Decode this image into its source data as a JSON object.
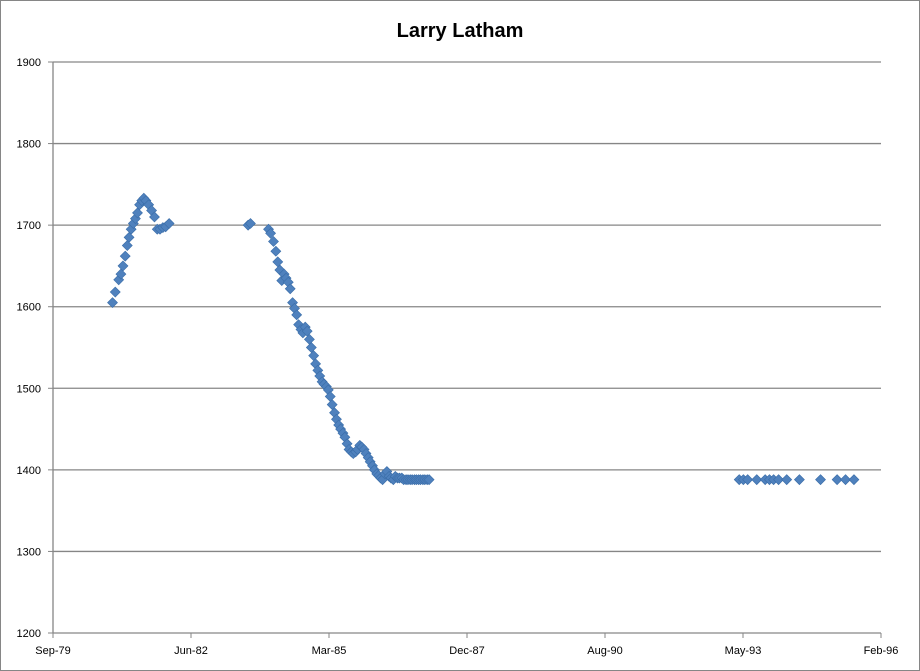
{
  "chart_data": {
    "type": "scatter",
    "title": "Larry Latham",
    "xlabel": "",
    "ylabel": "",
    "xlim": [
      "1979-09",
      "1996-02"
    ],
    "ylim": [
      1200,
      1900
    ],
    "x_ticks": [
      "Sep-79",
      "Jun-82",
      "Mar-85",
      "Dec-87",
      "Aug-90",
      "May-93",
      "Feb-96"
    ],
    "y_ticks": [
      1200,
      1300,
      1400,
      1500,
      1600,
      1700,
      1800,
      1900
    ],
    "grid": "horizontal",
    "legend": "none",
    "marker": "diamond",
    "marker_color": "#4F81BD",
    "gridline_color": "#868686",
    "series": [
      {
        "x": [
          "1980-11-05",
          "1980-11-25",
          "1980-12-20",
          "1981-01-05",
          "1981-01-20",
          "1981-02-05",
          "1981-02-20",
          "1981-03-05",
          "1981-03-20",
          "1981-04-05",
          "1981-04-20",
          "1981-05-05",
          "1981-05-20",
          "1981-06-05",
          "1981-06-20",
          "1981-07-05",
          "1981-07-25",
          "1981-08-15",
          "1981-09-05",
          "1981-09-25",
          "1981-10-15",
          "1981-11-05",
          "1981-11-25",
          "1981-12-20",
          "1983-07-15",
          "1983-08-01",
          "1983-12-10",
          "1983-12-25",
          "1984-01-15",
          "1984-02-01",
          "1984-02-15",
          "1984-03-01",
          "1984-03-15",
          "1984-04-01",
          "1984-04-15",
          "1984-05-01",
          "1984-05-15",
          "1984-06-01",
          "1984-06-15",
          "1984-07-01",
          "1984-07-15",
          "1984-08-01",
          "1984-08-15",
          "1984-09-01",
          "1984-09-15",
          "1984-10-01",
          "1984-10-15",
          "1984-11-01",
          "1984-11-15",
          "1984-12-01",
          "1984-12-15",
          "1985-01-01",
          "1985-01-15",
          "1985-02-01",
          "1985-02-15",
          "1985-03-01",
          "1985-03-15",
          "1985-04-01",
          "1985-04-15",
          "1985-05-01",
          "1985-05-15",
          "1985-06-01",
          "1985-06-15",
          "1985-07-01",
          "1985-07-15",
          "1985-08-01",
          "1985-08-15",
          "1985-09-01",
          "1985-09-15",
          "1985-10-01",
          "1985-10-15",
          "1985-11-01",
          "1985-11-15",
          "1985-12-01",
          "1985-12-15",
          "1986-01-01",
          "1986-01-15",
          "1986-02-01",
          "1986-02-15",
          "1986-03-01",
          "1986-03-15",
          "1986-04-01",
          "1986-04-15",
          "1986-05-01",
          "1986-05-15",
          "1986-06-01",
          "1986-06-15",
          "1986-07-01",
          "1986-07-15",
          "1986-08-01",
          "1986-08-15",
          "1986-09-01",
          "1986-09-15",
          "1986-10-01",
          "1986-10-15",
          "1986-11-01",
          "1986-11-15",
          "1986-12-01",
          "1986-12-15",
          "1987-01-01",
          "1987-01-15",
          "1987-02-01",
          "1987-02-15",
          "1993-04-10",
          "1993-05-10",
          "1993-06-10",
          "1993-08-15",
          "1993-10-15",
          "1993-11-15",
          "1993-12-15",
          "1994-01-20",
          "1994-03-20",
          "1994-06-20",
          "1994-11-20",
          "1995-03-20",
          "1995-05-20",
          "1995-07-20"
        ],
        "y": [
          1605,
          1618,
          1633,
          1640,
          1650,
          1662,
          1675,
          1685,
          1695,
          1702,
          1708,
          1715,
          1725,
          1730,
          1733,
          1730,
          1725,
          1718,
          1710,
          1695,
          1695,
          1697,
          1698,
          1702,
          1700,
          1702,
          1695,
          1690,
          1680,
          1668,
          1655,
          1645,
          1632,
          1640,
          1635,
          1630,
          1622,
          1605,
          1598,
          1590,
          1578,
          1572,
          1568,
          1575,
          1570,
          1560,
          1550,
          1540,
          1530,
          1522,
          1515,
          1508,
          1505,
          1502,
          1498,
          1490,
          1480,
          1470,
          1462,
          1455,
          1450,
          1445,
          1440,
          1432,
          1425,
          1422,
          1420,
          1422,
          1425,
          1430,
          1428,
          1425,
          1420,
          1415,
          1410,
          1405,
          1400,
          1395,
          1393,
          1390,
          1388,
          1395,
          1398,
          1392,
          1390,
          1388,
          1392,
          1390,
          1390,
          1390,
          1388,
          1388,
          1388,
          1388,
          1388,
          1388,
          1388,
          1388,
          1388,
          1388,
          1388,
          1388,
          1388,
          1388,
          1388,
          1388,
          1388,
          1388,
          1388,
          1388,
          1388,
          1388,
          1388,
          1388,
          1388,
          1388,
          1388
        ]
      }
    ]
  }
}
